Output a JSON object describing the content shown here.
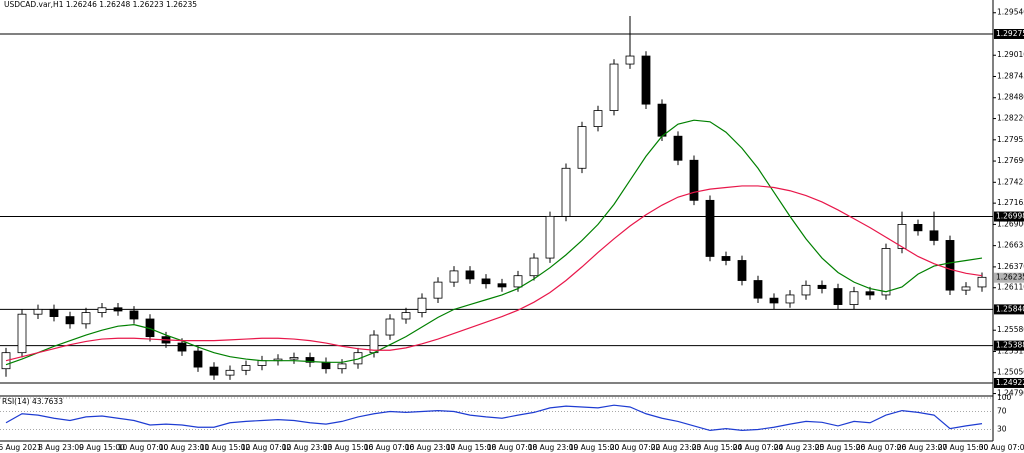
{
  "chart_data": {
    "type": "candlestick",
    "header": "USDCAD.var,H1  1.26246 1.26248 1.26223 1.26235",
    "ylim": [
      1.24772,
      1.29699
    ],
    "yticks": [
      {
        "value": 1.2954,
        "label": "1.29540"
      },
      {
        "value": 1.2901,
        "label": "1.29010"
      },
      {
        "value": 1.28745,
        "label": "1.28745"
      },
      {
        "value": 1.2848,
        "label": "1.28480"
      },
      {
        "value": 1.2822,
        "label": "1.28220"
      },
      {
        "value": 1.27955,
        "label": "1.27955"
      },
      {
        "value": 1.2769,
        "label": "1.27690"
      },
      {
        "value": 1.27425,
        "label": "1.27425"
      },
      {
        "value": 1.27165,
        "label": "1.27165"
      },
      {
        "value": 1.269,
        "label": "1.26900"
      },
      {
        "value": 1.26635,
        "label": "1.26635"
      },
      {
        "value": 1.2637,
        "label": "1.26370"
      },
      {
        "value": 1.2611,
        "label": "1.26110"
      },
      {
        "value": 1.2558,
        "label": "1.25580"
      },
      {
        "value": 1.25315,
        "label": "1.25315"
      },
      {
        "value": 1.2505,
        "label": "1.25050"
      },
      {
        "value": 1.2479,
        "label": "1.24790"
      }
    ],
    "levels": [
      {
        "value": 1.29275,
        "label": "1.29275"
      },
      {
        "value": 1.26998,
        "label": "1.26998"
      },
      {
        "value": 1.2584,
        "label": "1.25840"
      },
      {
        "value": 1.25388,
        "label": "1.25388"
      },
      {
        "value": 1.24922,
        "label": "1.24922"
      }
    ],
    "current_price": {
      "value": 1.26235,
      "label": "1.26235"
    },
    "xlabels": [
      "6 Aug 2021",
      "8 Aug 23:00",
      "9 Aug 15:00",
      "10 Aug 07:00",
      "10 Aug 23:00",
      "11 Aug 15:00",
      "12 Aug 07:00",
      "12 Aug 23:00",
      "13 Aug 15:00",
      "16 Aug 07:00",
      "16 Aug 23:00",
      "17 Aug 15:00",
      "18 Aug 07:00",
      "18 Aug 23:00",
      "19 Aug 15:00",
      "20 Aug 07:00",
      "22 Aug 23:00",
      "23 Aug 15:00",
      "24 Aug 07:00",
      "24 Aug 23:00",
      "25 Aug 15:00",
      "26 Aug 07:00",
      "26 Aug 23:00",
      "27 Aug 15:00",
      "30 Aug 07:00"
    ],
    "open": [
      1.251,
      1.253,
      1.2578,
      1.2584,
      1.2575,
      1.2566,
      1.258,
      1.2586,
      1.2582,
      1.2572,
      1.255,
      1.2542,
      1.2532,
      1.2512,
      1.2502,
      1.2508,
      1.2514,
      1.252,
      1.2522,
      1.2524,
      1.2518,
      1.251,
      1.2516,
      1.253,
      1.2552,
      1.2572,
      1.258,
      1.2598,
      1.2618,
      1.2632,
      1.2622,
      1.2616,
      1.2612,
      1.2626,
      1.2648,
      1.27,
      1.276,
      1.2812,
      1.2832,
      1.289,
      1.29,
      1.284,
      1.28,
      1.277,
      1.272,
      1.265,
      1.2645,
      1.262,
      1.2598,
      1.2592,
      1.2602,
      1.2614,
      1.261,
      1.259,
      1.2606,
      1.2602,
      1.266,
      1.269,
      1.2682,
      1.267,
      1.2608,
      1.2612
    ],
    "high": [
      1.2536,
      1.2584,
      1.259,
      1.259,
      1.2581,
      1.2586,
      1.2592,
      1.2592,
      1.2588,
      1.2578,
      1.2556,
      1.2548,
      1.2538,
      1.2518,
      1.2514,
      1.252,
      1.2526,
      1.2528,
      1.253,
      1.253,
      1.2524,
      1.2522,
      1.2536,
      1.2558,
      1.2578,
      1.2586,
      1.2604,
      1.2624,
      1.2638,
      1.2638,
      1.2628,
      1.2622,
      1.2632,
      1.2654,
      1.2706,
      1.2766,
      1.2818,
      1.2838,
      1.2896,
      1.295,
      1.2906,
      1.2846,
      1.2806,
      1.2776,
      1.2726,
      1.2656,
      1.2651,
      1.2626,
      1.2604,
      1.2608,
      1.262,
      1.262,
      1.2616,
      1.2612,
      1.2612,
      1.2666,
      1.2706,
      1.2696,
      1.2706,
      1.2676,
      1.2618,
      1.263
    ],
    "low": [
      1.25,
      1.2524,
      1.2572,
      1.2569,
      1.256,
      1.256,
      1.2574,
      1.2576,
      1.2566,
      1.2544,
      1.2536,
      1.2526,
      1.2506,
      1.2496,
      1.2496,
      1.2502,
      1.2508,
      1.2514,
      1.2516,
      1.2512,
      1.2504,
      1.2504,
      1.251,
      1.2524,
      1.2546,
      1.2566,
      1.2574,
      1.2592,
      1.2612,
      1.2616,
      1.261,
      1.2606,
      1.2606,
      1.262,
      1.2642,
      1.2694,
      1.2754,
      1.2806,
      1.2826,
      1.2884,
      1.2834,
      1.2794,
      1.2764,
      1.2714,
      1.2644,
      1.2639,
      1.2614,
      1.2592,
      1.2584,
      1.2586,
      1.2596,
      1.2604,
      1.2584,
      1.2584,
      1.2596,
      1.2596,
      1.2654,
      1.2676,
      1.2664,
      1.2602,
      1.2602,
      1.2606
    ],
    "close": [
      1.253,
      1.2578,
      1.2584,
      1.2575,
      1.2566,
      1.258,
      1.2586,
      1.2582,
      1.2572,
      1.255,
      1.2542,
      1.2532,
      1.2512,
      1.2502,
      1.2508,
      1.2514,
      1.252,
      1.2522,
      1.2524,
      1.2518,
      1.251,
      1.2516,
      1.253,
      1.2552,
      1.2572,
      1.258,
      1.2598,
      1.2618,
      1.2632,
      1.2622,
      1.2616,
      1.2612,
      1.2626,
      1.2648,
      1.27,
      1.276,
      1.2812,
      1.2832,
      1.289,
      1.29,
      1.284,
      1.28,
      1.277,
      1.272,
      1.265,
      1.2645,
      1.262,
      1.2598,
      1.2592,
      1.2602,
      1.2614,
      1.261,
      1.259,
      1.2606,
      1.2602,
      1.266,
      1.269,
      1.2682,
      1.267,
      1.2608,
      1.2612,
      1.2624
    ],
    "series": [
      {
        "color": "#008000",
        "values": [
          1.2515,
          1.2522,
          1.253,
          1.2538,
          1.2545,
          1.2552,
          1.2558,
          1.2563,
          1.2565,
          1.256,
          1.2552,
          1.2545,
          1.2537,
          1.253,
          1.2525,
          1.2522,
          1.252,
          1.252,
          1.252,
          1.2519,
          1.2518,
          1.2518,
          1.2522,
          1.253,
          1.254,
          1.255,
          1.2562,
          1.2574,
          1.2584,
          1.259,
          1.2596,
          1.2602,
          1.261,
          1.2622,
          1.2636,
          1.2652,
          1.267,
          1.269,
          1.2715,
          1.2745,
          1.2775,
          1.28,
          1.2815,
          1.282,
          1.2818,
          1.2805,
          1.2785,
          1.276,
          1.273,
          1.27,
          1.2672,
          1.2648,
          1.263,
          1.2618,
          1.261,
          1.2606,
          1.2612,
          1.2628,
          1.2638,
          1.2642,
          1.2645,
          1.2648
        ]
      },
      {
        "color": "#e8174a",
        "values": [
          1.252,
          1.2525,
          1.253,
          1.2535,
          1.254,
          1.2544,
          1.2547,
          1.2548,
          1.2548,
          1.2547,
          1.2546,
          1.2545,
          1.2545,
          1.2545,
          1.2546,
          1.2547,
          1.2548,
          1.2548,
          1.2547,
          1.2545,
          1.2542,
          1.2538,
          1.2535,
          1.2533,
          1.2533,
          1.2536,
          1.2541,
          1.2547,
          1.2554,
          1.2561,
          1.2568,
          1.2575,
          1.2583,
          1.2593,
          1.2605,
          1.262,
          1.2637,
          1.2655,
          1.2672,
          1.2688,
          1.2702,
          1.2714,
          1.2724,
          1.273,
          1.2734,
          1.2736,
          1.2738,
          1.2738,
          1.2736,
          1.2732,
          1.2726,
          1.2718,
          1.2708,
          1.2697,
          1.2686,
          1.2674,
          1.2662,
          1.265,
          1.2641,
          1.2634,
          1.2629,
          1.2626
        ]
      }
    ],
    "rsi": {
      "label": "RSI(14) 43.7633",
      "color": "#1e3cd2",
      "ylim": [
        0,
        100
      ],
      "yticks": [
        100,
        70,
        30
      ],
      "values": [
        45,
        65,
        62,
        55,
        50,
        58,
        60,
        55,
        50,
        40,
        42,
        40,
        35,
        35,
        45,
        48,
        50,
        52,
        50,
        45,
        42,
        48,
        58,
        65,
        70,
        68,
        70,
        72,
        70,
        62,
        58,
        55,
        62,
        68,
        78,
        82,
        80,
        78,
        84,
        80,
        65,
        55,
        48,
        38,
        28,
        32,
        28,
        30,
        35,
        42,
        48,
        46,
        38,
        48,
        45,
        62,
        72,
        68,
        62,
        32,
        38,
        43
      ]
    }
  }
}
